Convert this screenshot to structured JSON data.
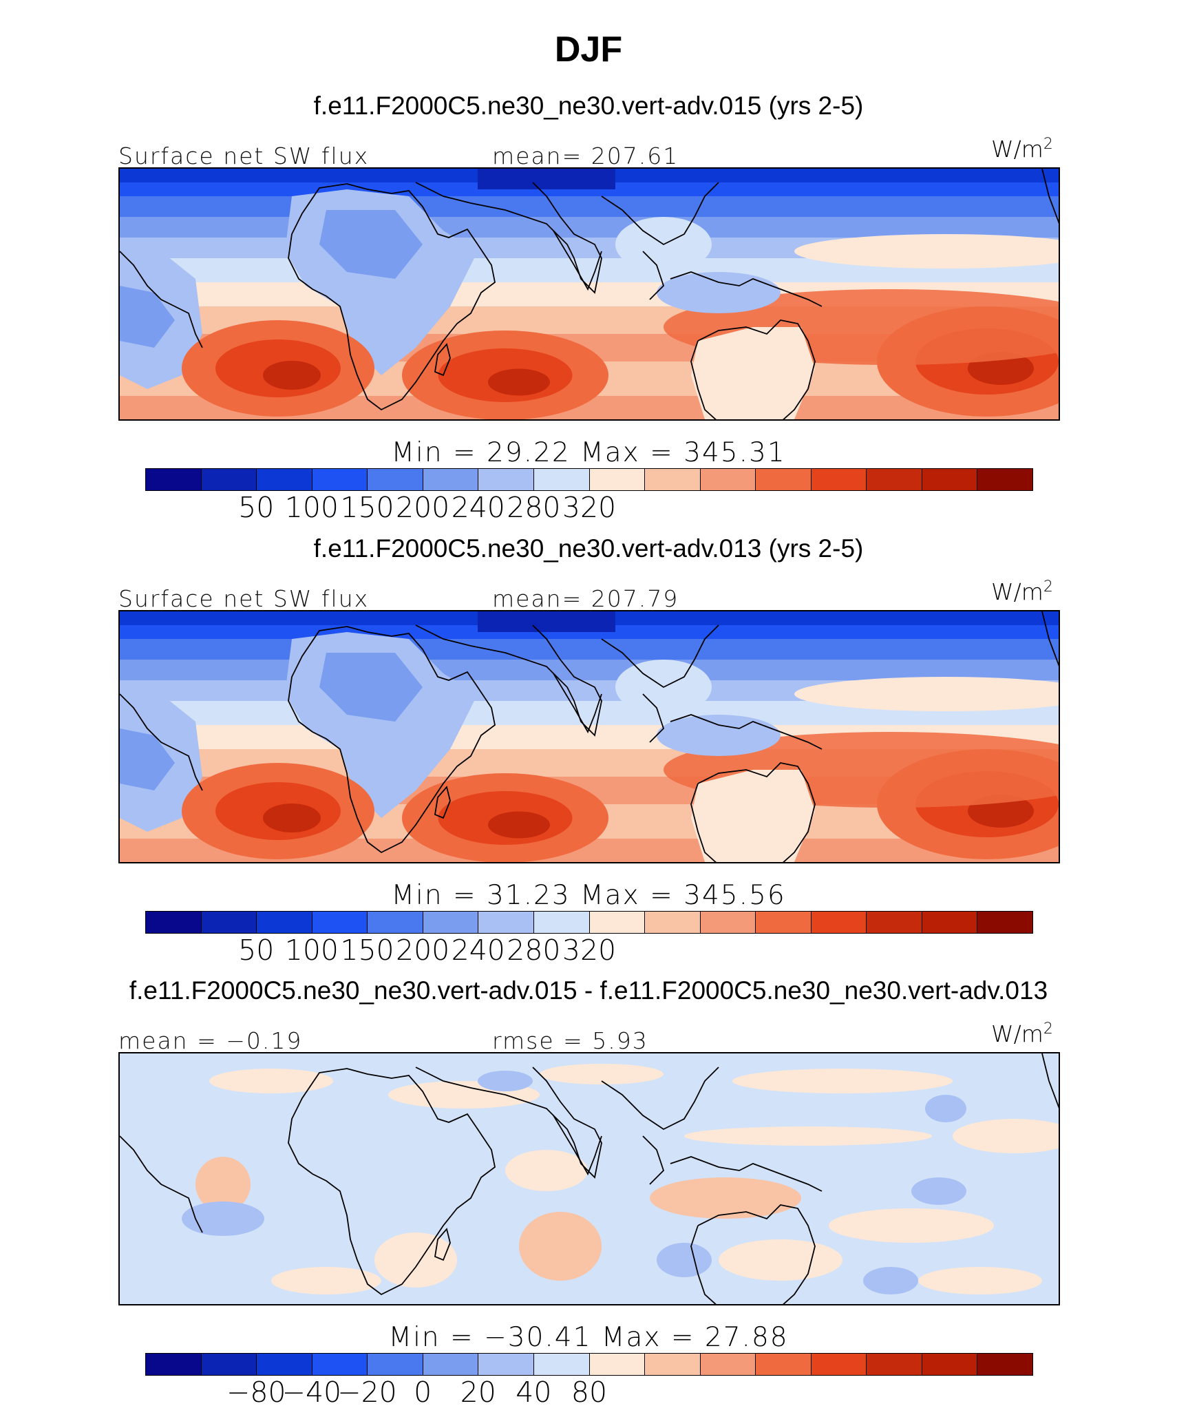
{
  "title": "DJF",
  "panels": [
    {
      "case": "f.e11.F2000C5.ne30_ne30.vert-adv.015 (yrs 2-5)",
      "left_label": "Surface net SW flux",
      "center_label": "mean=  207.61",
      "units": "W/m",
      "units_sup": "2",
      "minmax": "Min  =   29.22  Max  =  345.31",
      "ticks": [
        "50",
        "100",
        "150",
        "200",
        "240",
        "280",
        "320"
      ],
      "kind": "abs"
    },
    {
      "case": "f.e11.F2000C5.ne30_ne30.vert-adv.013 (yrs 2-5)",
      "left_label": "Surface net SW flux",
      "center_label": "mean=  207.79",
      "units": "W/m",
      "units_sup": "2",
      "minmax": "Min  =   31.23  Max  =  345.56",
      "ticks": [
        "50",
        "100",
        "150",
        "200",
        "240",
        "280",
        "320"
      ],
      "kind": "abs"
    },
    {
      "case": "f.e11.F2000C5.ne30_ne30.vert-adv.015 - f.e11.F2000C5.ne30_ne30.vert-adv.013",
      "left_label": "mean =   −0.19",
      "center_label": "rmse =     5.93",
      "units": "W/m",
      "units_sup": "2",
      "minmax": "Min  =  −30.41  Max  =    27.88",
      "ticks": [
        "−80",
        "−40",
        "−20",
        "0",
        "20",
        "40",
        "80"
      ],
      "kind": "diff"
    }
  ],
  "colors": {
    "palette": [
      "#08088c",
      "#0b24b4",
      "#0c38d6",
      "#1f52f2",
      "#4a78ee",
      "#7b9df0",
      "#a8c0f4",
      "#d2e2f8",
      "#fde8d8",
      "#f9c3a6",
      "#f59a78",
      "#f06a40",
      "#e5431c",
      "#c52a0c",
      "#b81f05",
      "#8a0a00"
    ]
  }
}
